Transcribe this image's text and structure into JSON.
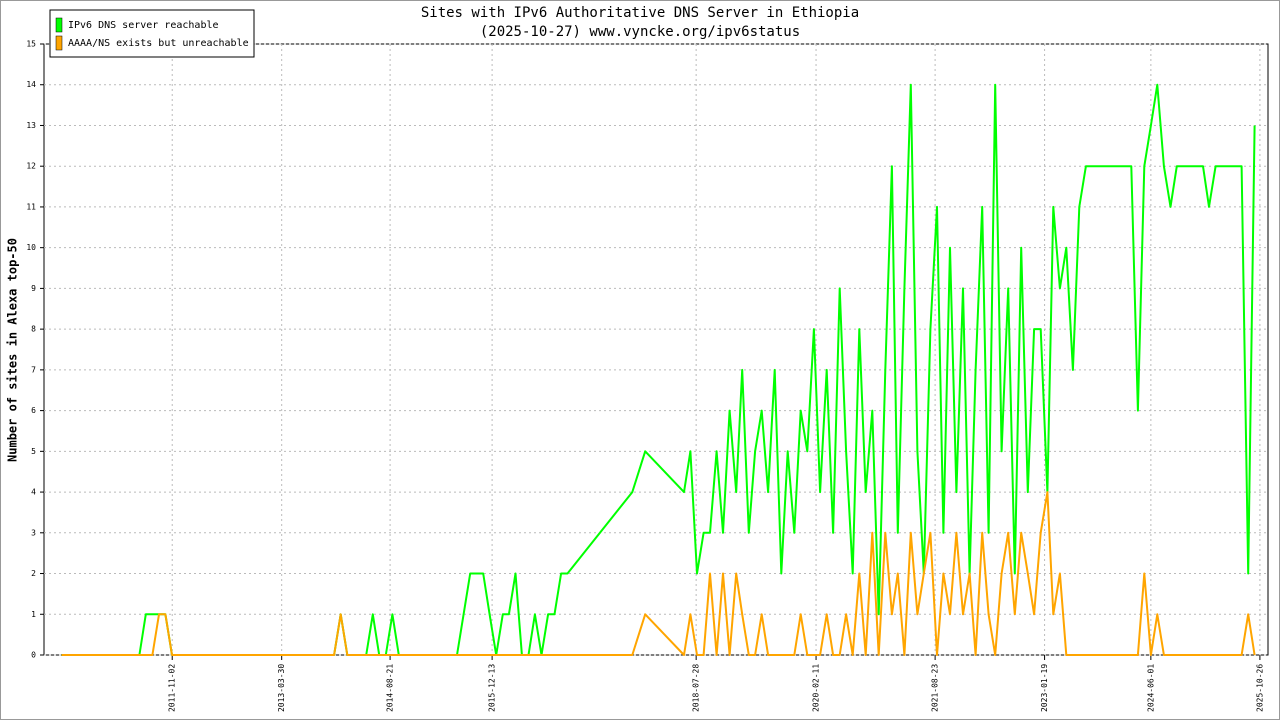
{
  "chart_data": {
    "type": "line",
    "title": "Sites with IPv6 Authoritative DNS Server in Ethiopia",
    "subtitle": "(2025-10-27) www.vyncke.org/ipv6status",
    "y_label": "Number of sites in Alexa top-50",
    "legend": "top-left",
    "grid": true,
    "xlim": [
      "2010-03-10",
      "2025-12-03"
    ],
    "xticks": [
      "2011-11-02",
      "2013-03-30",
      "2014-08-21",
      "2015-12-13",
      "2018-07-28",
      "2020-02-11",
      "2021-08-23",
      "2023-01-19",
      "2024-06-01",
      "2025-10-26"
    ],
    "ylim": [
      0,
      15
    ],
    "yticks": [
      0,
      1,
      2,
      3,
      4,
      5,
      6,
      7,
      8,
      9,
      10,
      11,
      12,
      13,
      14,
      15
    ],
    "x": [
      "2010-06-01",
      "2010-07-01",
      "2010-08-01",
      "2010-09-01",
      "2010-10-01",
      "2010-11-01",
      "2010-12-01",
      "2011-01-01",
      "2011-02-01",
      "2011-03-01",
      "2011-04-01",
      "2011-05-01",
      "2011-06-01",
      "2011-07-01",
      "2011-08-01",
      "2011-09-01",
      "2011-10-01",
      "2011-11-01",
      "2011-12-01",
      "2012-01-01",
      "2012-02-01",
      "2012-03-01",
      "2012-04-01",
      "2012-05-01",
      "2012-06-01",
      "2012-07-01",
      "2012-08-01",
      "2012-09-01",
      "2012-10-01",
      "2012-11-01",
      "2012-12-01",
      "2013-01-01",
      "2013-02-01",
      "2013-03-01",
      "2013-04-01",
      "2013-05-01",
      "2013-06-01",
      "2013-07-01",
      "2013-08-01",
      "2013-09-01",
      "2013-10-01",
      "2013-11-01",
      "2013-12-01",
      "2014-01-01",
      "2014-02-01",
      "2014-03-01",
      "2014-04-01",
      "2014-05-01",
      "2014-06-01",
      "2014-07-01",
      "2014-08-01",
      "2014-09-01",
      "2014-10-01",
      "2014-11-01",
      "2014-12-01",
      "2015-01-01",
      "2015-02-01",
      "2015-03-01",
      "2015-04-01",
      "2015-05-01",
      "2015-06-01",
      "2015-07-01",
      "2015-08-01",
      "2015-09-01",
      "2015-10-01",
      "2015-11-01",
      "2015-12-01",
      "2016-01-01",
      "2016-02-01",
      "2016-03-01",
      "2016-04-01",
      "2016-05-01",
      "2016-06-01",
      "2016-07-01",
      "2016-08-01",
      "2016-09-01",
      "2016-10-01",
      "2016-11-01",
      "2016-12-01",
      "2017-10-01",
      "2017-12-01",
      "2018-06-01",
      "2018-07-01",
      "2018-08-01",
      "2018-09-01",
      "2018-10-01",
      "2018-11-01",
      "2018-12-01",
      "2019-01-01",
      "2019-02-01",
      "2019-03-01",
      "2019-04-01",
      "2019-05-01",
      "2019-06-01",
      "2019-07-01",
      "2019-08-01",
      "2019-09-01",
      "2019-10-01",
      "2019-11-01",
      "2019-12-01",
      "2020-01-01",
      "2020-02-01",
      "2020-03-01",
      "2020-04-01",
      "2020-05-01",
      "2020-06-01",
      "2020-07-01",
      "2020-08-01",
      "2020-09-01",
      "2020-10-01",
      "2020-11-01",
      "2020-12-01",
      "2021-01-01",
      "2021-02-01",
      "2021-03-01",
      "2021-04-01",
      "2021-05-01",
      "2021-06-01",
      "2021-07-01",
      "2021-08-01",
      "2021-09-01",
      "2021-10-01",
      "2021-11-01",
      "2021-12-01",
      "2022-01-01",
      "2022-02-01",
      "2022-03-01",
      "2022-04-01",
      "2022-05-01",
      "2022-06-01",
      "2022-07-01",
      "2022-08-01",
      "2022-09-01",
      "2022-10-01",
      "2022-11-01",
      "2022-12-01",
      "2023-01-01",
      "2023-02-01",
      "2023-03-01",
      "2023-04-01",
      "2023-05-01",
      "2023-06-01",
      "2023-07-01",
      "2023-08-01",
      "2023-09-01",
      "2023-10-01",
      "2023-11-01",
      "2023-12-01",
      "2024-01-01",
      "2024-02-01",
      "2024-03-01",
      "2024-04-01",
      "2024-05-01",
      "2024-06-01",
      "2024-07-01",
      "2024-08-01",
      "2024-09-01",
      "2024-10-01",
      "2024-11-01",
      "2024-12-01",
      "2025-01-01",
      "2025-02-01",
      "2025-03-01",
      "2025-04-01",
      "2025-05-01",
      "2025-06-01",
      "2025-07-01",
      "2025-08-01",
      "2025-09-01",
      "2025-10-01"
    ],
    "series": [
      {
        "name": "IPv6 DNS server reachable",
        "color": "#00ff00",
        "values": [
          0,
          0,
          0,
          0,
          0,
          0,
          0,
          0,
          0,
          0,
          0,
          0,
          0,
          1,
          1,
          1,
          1,
          0,
          0,
          0,
          0,
          0,
          0,
          0,
          0,
          0,
          0,
          0,
          0,
          0,
          0,
          0,
          0,
          0,
          0,
          0,
          0,
          0,
          0,
          0,
          0,
          0,
          0,
          1,
          0,
          0,
          0,
          0,
          1,
          0,
          0,
          1,
          0,
          0,
          0,
          0,
          0,
          0,
          0,
          0,
          0,
          0,
          1,
          2,
          2,
          2,
          1,
          0,
          1,
          1,
          2,
          0,
          0,
          1,
          0,
          1,
          1,
          2,
          2,
          4,
          5,
          4,
          5,
          2,
          3,
          3,
          5,
          3,
          6,
          4,
          7,
          3,
          5,
          6,
          4,
          7,
          2,
          5,
          3,
          6,
          5,
          8,
          4,
          7,
          3,
          9,
          5,
          2,
          8,
          4,
          6,
          1,
          7,
          12,
          3,
          9,
          14,
          5,
          2,
          8,
          11,
          3,
          10,
          4,
          9,
          2,
          7,
          11,
          3,
          14,
          5,
          9,
          2,
          10,
          4,
          8,
          8,
          4,
          11,
          9,
          10,
          7,
          11,
          12,
          12,
          12,
          12,
          12,
          12,
          12,
          12,
          6,
          12,
          13,
          14,
          12,
          11,
          12,
          12,
          12,
          12,
          12,
          11,
          12,
          12,
          12,
          12,
          12,
          2,
          13
        ]
      },
      {
        "name": "AAAA/NS exists but unreachable",
        "color": "#ffa500",
        "values": [
          0,
          0,
          0,
          0,
          0,
          0,
          0,
          0,
          0,
          0,
          0,
          0,
          0,
          0,
          0,
          1,
          1,
          0,
          0,
          0,
          0,
          0,
          0,
          0,
          0,
          0,
          0,
          0,
          0,
          0,
          0,
          0,
          0,
          0,
          0,
          0,
          0,
          0,
          0,
          0,
          0,
          0,
          0,
          1,
          0,
          0,
          0,
          0,
          0,
          0,
          0,
          0,
          0,
          0,
          0,
          0,
          0,
          0,
          0,
          0,
          0,
          0,
          0,
          0,
          0,
          0,
          0,
          0,
          0,
          0,
          0,
          0,
          0,
          0,
          0,
          0,
          0,
          0,
          0,
          0,
          1,
          0,
          1,
          0,
          0,
          2,
          0,
          2,
          0,
          2,
          1,
          0,
          0,
          1,
          0,
          0,
          0,
          0,
          0,
          1,
          0,
          0,
          0,
          1,
          0,
          0,
          1,
          0,
          2,
          0,
          3,
          0,
          3,
          1,
          2,
          0,
          3,
          1,
          2,
          3,
          0,
          2,
          1,
          3,
          1,
          2,
          0,
          3,
          1,
          0,
          2,
          3,
          1,
          3,
          2,
          1,
          3,
          4,
          1,
          2,
          0,
          0,
          0,
          0,
          0,
          0,
          0,
          0,
          0,
          0,
          0,
          0,
          2,
          0,
          1,
          0,
          0,
          0,
          0,
          0,
          0,
          0,
          0,
          0,
          0,
          0,
          0,
          0,
          1,
          0
        ]
      }
    ]
  }
}
